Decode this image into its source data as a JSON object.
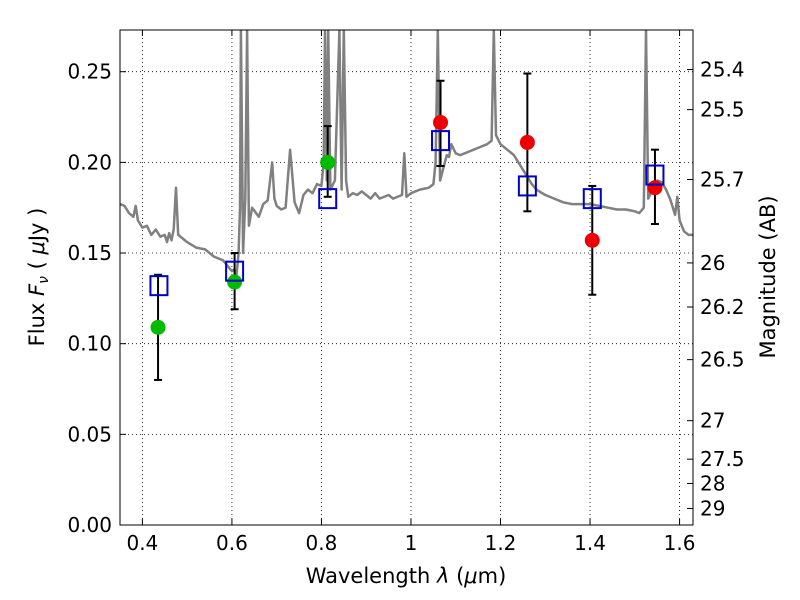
{
  "chart_data": {
    "type": "scatter",
    "xlabel": "Wavelength  λ (μm)",
    "ylabel": "Flux  F_ν  ( μJy )",
    "ylabel_parts": {
      "prefix": "Flux  ",
      "symbol": "F",
      "subscript": "ν",
      "open": "  ( ",
      "mu": "μ",
      "unit": "Jy )"
    },
    "xlabel_parts": {
      "prefix": "Wavelength  ",
      "symbol": "λ",
      "open": " (",
      "mu": "μ",
      "unit": "m)"
    },
    "y2label": "Magnitude (AB)",
    "xlim": [
      0.35,
      1.63
    ],
    "ylim": [
      0.0,
      0.273
    ],
    "grid": true,
    "x_ticks": [
      {
        "value": 0.4,
        "label": "0.4"
      },
      {
        "value": 0.6,
        "label": "0.6"
      },
      {
        "value": 0.8,
        "label": "0.8"
      },
      {
        "value": 1.0,
        "label": "1"
      },
      {
        "value": 1.2,
        "label": "1.2"
      },
      {
        "value": 1.4,
        "label": "1.4"
      },
      {
        "value": 1.6,
        "label": "1.6"
      }
    ],
    "y_ticks": [
      {
        "value": 0.0,
        "label": "0.00"
      },
      {
        "value": 0.05,
        "label": "0.05"
      },
      {
        "value": 0.1,
        "label": "0.10"
      },
      {
        "value": 0.15,
        "label": "0.15"
      },
      {
        "value": 0.2,
        "label": "0.20"
      },
      {
        "value": 0.25,
        "label": "0.25"
      }
    ],
    "mag_ticks": [
      {
        "mag": 25.4,
        "label": "25.4"
      },
      {
        "mag": 25.5,
        "label": "25.5"
      },
      {
        "mag": 25.7,
        "label": "25.7"
      },
      {
        "mag": 26.0,
        "label": "26"
      },
      {
        "mag": 26.2,
        "label": "26.2"
      },
      {
        "mag": 26.5,
        "label": "26.5"
      },
      {
        "mag": 27.0,
        "label": "27"
      },
      {
        "mag": 27.5,
        "label": "27.5"
      },
      {
        "mag": 28.0,
        "label": "28"
      },
      {
        "mag": 29.0,
        "label": "29"
      }
    ],
    "colors": {
      "model": "#808080",
      "model_points": "#0000cc",
      "optical_points": "#00bb00",
      "nir_points": "#ee0000",
      "errorbars": "#000000"
    },
    "model_spectrum": [
      [
        0.35,
        0.177
      ],
      [
        0.36,
        0.176
      ],
      [
        0.37,
        0.172
      ],
      [
        0.38,
        0.17
      ],
      [
        0.385,
        0.176
      ],
      [
        0.39,
        0.168
      ],
      [
        0.4,
        0.164
      ],
      [
        0.41,
        0.165
      ],
      [
        0.42,
        0.16
      ],
      [
        0.43,
        0.163
      ],
      [
        0.44,
        0.159
      ],
      [
        0.45,
        0.16
      ],
      [
        0.455,
        0.156
      ],
      [
        0.46,
        0.161
      ],
      [
        0.465,
        0.157
      ],
      [
        0.47,
        0.163
      ],
      [
        0.475,
        0.186
      ],
      [
        0.48,
        0.16
      ],
      [
        0.49,
        0.158
      ],
      [
        0.5,
        0.156
      ],
      [
        0.52,
        0.153
      ],
      [
        0.54,
        0.152
      ],
      [
        0.56,
        0.148
      ],
      [
        0.58,
        0.146
      ],
      [
        0.59,
        0.143
      ],
      [
        0.6,
        0.14
      ],
      [
        0.605,
        0.141
      ],
      [
        0.61,
        0.137
      ],
      [
        0.615,
        0.15
      ],
      [
        0.618,
        0.175
      ],
      [
        0.62,
        0.273
      ],
      [
        0.625,
        0.15
      ],
      [
        0.63,
        0.18
      ],
      [
        0.634,
        0.273
      ],
      [
        0.638,
        0.165
      ],
      [
        0.645,
        0.175
      ],
      [
        0.66,
        0.17
      ],
      [
        0.67,
        0.177
      ],
      [
        0.68,
        0.179
      ],
      [
        0.69,
        0.2
      ],
      [
        0.695,
        0.18
      ],
      [
        0.7,
        0.176
      ],
      [
        0.71,
        0.174
      ],
      [
        0.72,
        0.175
      ],
      [
        0.73,
        0.207
      ],
      [
        0.74,
        0.178
      ],
      [
        0.75,
        0.172
      ],
      [
        0.76,
        0.182
      ],
      [
        0.77,
        0.185
      ],
      [
        0.78,
        0.183
      ],
      [
        0.79,
        0.188
      ],
      [
        0.8,
        0.187
      ],
      [
        0.805,
        0.2
      ],
      [
        0.808,
        0.273
      ],
      [
        0.812,
        0.19
      ],
      [
        0.815,
        0.273
      ],
      [
        0.82,
        0.185
      ],
      [
        0.83,
        0.19
      ],
      [
        0.84,
        0.273
      ],
      [
        0.845,
        0.185
      ],
      [
        0.85,
        0.273
      ],
      [
        0.855,
        0.19
      ],
      [
        0.86,
        0.181
      ],
      [
        0.87,
        0.183
      ],
      [
        0.88,
        0.182
      ],
      [
        0.89,
        0.184
      ],
      [
        0.9,
        0.182
      ],
      [
        0.91,
        0.18
      ],
      [
        0.92,
        0.183
      ],
      [
        0.93,
        0.18
      ],
      [
        0.95,
        0.182
      ],
      [
        0.96,
        0.18
      ],
      [
        0.98,
        0.182
      ],
      [
        0.985,
        0.205
      ],
      [
        0.99,
        0.181
      ],
      [
        1.0,
        0.183
      ],
      [
        1.02,
        0.185
      ],
      [
        1.04,
        0.186
      ],
      [
        1.05,
        0.188
      ],
      [
        1.055,
        0.2
      ],
      [
        1.06,
        0.273
      ],
      [
        1.065,
        0.19
      ],
      [
        1.08,
        0.204
      ],
      [
        1.085,
        0.203
      ],
      [
        1.09,
        0.21
      ],
      [
        1.1,
        0.205
      ],
      [
        1.11,
        0.204
      ],
      [
        1.12,
        0.205
      ],
      [
        1.13,
        0.206
      ],
      [
        1.14,
        0.207
      ],
      [
        1.15,
        0.208
      ],
      [
        1.16,
        0.209
      ],
      [
        1.17,
        0.21
      ],
      [
        1.18,
        0.212
      ],
      [
        1.185,
        0.273
      ],
      [
        1.19,
        0.215
      ],
      [
        1.2,
        0.21
      ],
      [
        1.21,
        0.208
      ],
      [
        1.22,
        0.206
      ],
      [
        1.23,
        0.204
      ],
      [
        1.24,
        0.2
      ],
      [
        1.25,
        0.196
      ],
      [
        1.26,
        0.192
      ],
      [
        1.27,
        0.188
      ],
      [
        1.28,
        0.185
      ],
      [
        1.3,
        0.182
      ],
      [
        1.32,
        0.18
      ],
      [
        1.34,
        0.178
      ],
      [
        1.36,
        0.177
      ],
      [
        1.38,
        0.177
      ],
      [
        1.4,
        0.177
      ],
      [
        1.42,
        0.176
      ],
      [
        1.44,
        0.175
      ],
      [
        1.46,
        0.174
      ],
      [
        1.48,
        0.174
      ],
      [
        1.5,
        0.173
      ],
      [
        1.51,
        0.172
      ],
      [
        1.52,
        0.175
      ],
      [
        1.525,
        0.273
      ],
      [
        1.53,
        0.18
      ],
      [
        1.54,
        0.185
      ],
      [
        1.55,
        0.19
      ],
      [
        1.56,
        0.189
      ],
      [
        1.57,
        0.185
      ],
      [
        1.58,
        0.179
      ],
      [
        1.59,
        0.171
      ],
      [
        1.595,
        0.181
      ],
      [
        1.6,
        0.168
      ],
      [
        1.61,
        0.162
      ],
      [
        1.62,
        0.16
      ],
      [
        1.63,
        0.16
      ]
    ],
    "model_photometry": [
      {
        "x": 0.437,
        "y": 0.132
      },
      {
        "x": 0.606,
        "y": 0.14
      },
      {
        "x": 0.814,
        "y": 0.18
      },
      {
        "x": 1.066,
        "y": 0.212
      },
      {
        "x": 1.26,
        "y": 0.187
      },
      {
        "x": 1.405,
        "y": 0.18
      },
      {
        "x": 1.545,
        "y": 0.193
      }
    ],
    "observed_optical": [
      {
        "x": 0.435,
        "y": 0.109,
        "ylo": 0.08,
        "yhi": 0.138
      },
      {
        "x": 0.606,
        "y": 0.134,
        "ylo": 0.119,
        "yhi": 0.15
      },
      {
        "x": 0.814,
        "y": 0.2,
        "ylo": 0.181,
        "yhi": 0.22
      }
    ],
    "observed_nir": [
      {
        "x": 1.066,
        "y": 0.222,
        "ylo": 0.198,
        "yhi": 0.245
      },
      {
        "x": 1.26,
        "y": 0.211,
        "ylo": 0.173,
        "yhi": 0.249
      },
      {
        "x": 1.405,
        "y": 0.157,
        "ylo": 0.127,
        "yhi": 0.187
      },
      {
        "x": 1.545,
        "y": 0.186,
        "ylo": 0.166,
        "yhi": 0.207
      }
    ]
  }
}
